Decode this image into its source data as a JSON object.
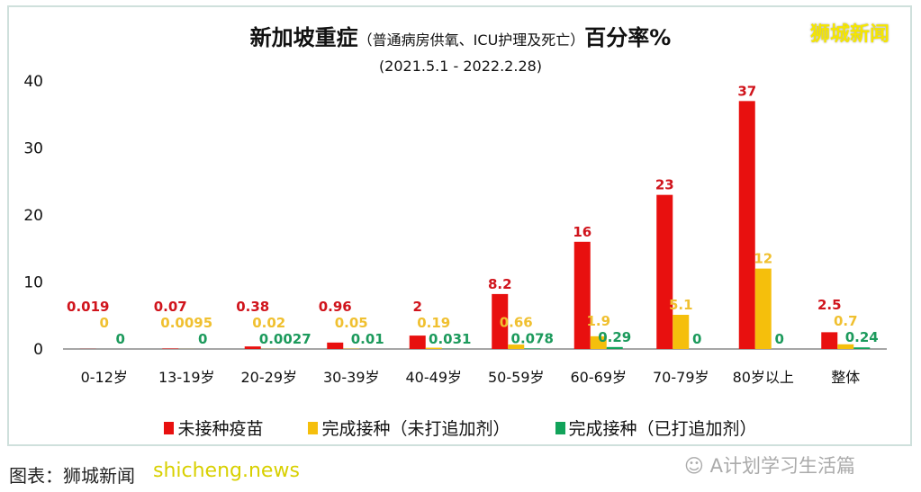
{
  "brand": "狮城新闻",
  "credit": "图表：狮城新闻",
  "credit_overlay": "shicheng.news",
  "wechat": "A计划学习生活篇",
  "chart_data": {
    "type": "bar",
    "title": "新加坡重症",
    "title_note": "（普通病房供氧、ICU护理及死亡）",
    "title_suffix": "百分率%",
    "subtitle": "(2021.5.1 - 2022.2.28)",
    "ylim": [
      0,
      40
    ],
    "yticks": [
      "0",
      "10",
      "20",
      "30",
      "40"
    ],
    "grid": false,
    "legend_position": "bottom",
    "categories": [
      "0-12岁",
      "13-19岁",
      "20-29岁",
      "30-39岁",
      "40-49岁",
      "50-59岁",
      "60-69岁",
      "70-79岁",
      "80岁以上",
      "整体"
    ],
    "series": [
      {
        "name": "未接种疫苗",
        "color": "#e8100f",
        "label_color": "#d0141c",
        "values": [
          0.019,
          0.07,
          0.38,
          0.96,
          2,
          8.2,
          16,
          23,
          37,
          2.5
        ],
        "labels": [
          "0.019",
          "0.07",
          "0.38",
          "0.96",
          "2",
          "8.2",
          "16",
          "23",
          "37",
          "2.5"
        ]
      },
      {
        "name": "完成接种（未打追加剂）",
        "color": "#f5bf0c",
        "label_color": "#f0c030",
        "values": [
          0,
          0.0095,
          0.02,
          0.05,
          0.19,
          0.66,
          1.9,
          5.1,
          12,
          0.7
        ],
        "labels": [
          "0",
          "0.0095",
          "0.02",
          "0.05",
          "0.19",
          "0.66",
          "1.9",
          "5.1",
          "12",
          "0.7"
        ]
      },
      {
        "name": "完成接种（已打追加剂）",
        "color": "#12a35a",
        "label_color": "#1c9a5c",
        "values": [
          0,
          0,
          0.0027,
          0.01,
          0.031,
          0.078,
          0.29,
          0,
          0,
          0.24
        ],
        "labels": [
          "0",
          "0",
          "0.0027",
          "0.01",
          "0.031",
          "0.078",
          "0.29",
          "0",
          "0",
          "0.24"
        ]
      }
    ]
  }
}
